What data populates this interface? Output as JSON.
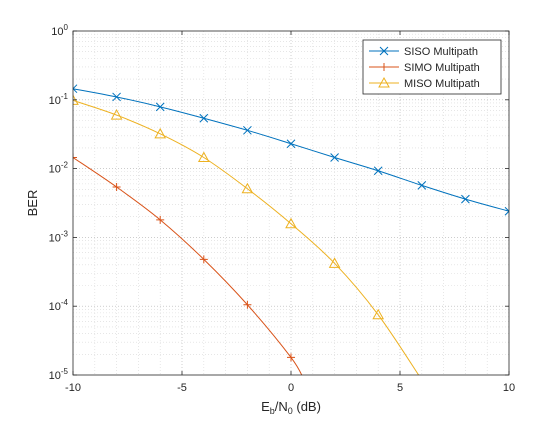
{
  "chart_data": {
    "type": "line",
    "title": "",
    "xlabel": {
      "pre": "E",
      "sub1": "b",
      "mid": "/N",
      "sub2": "0",
      "post": "  (dB)"
    },
    "ylabel": "BER",
    "xlim": [
      -10,
      10
    ],
    "ylim": [
      1e-05,
      1
    ],
    "yscale": "log",
    "grid": "major and minor, dotted",
    "legend_position": "top-right",
    "x_ticks": [
      -10,
      -5,
      0,
      5,
      10
    ],
    "x_tick_labels": [
      "-10",
      "-5",
      "0",
      "5",
      "10"
    ],
    "y_ticks": [
      {
        "value": 1,
        "base": "10",
        "exp": "0"
      },
      {
        "value": 0.1,
        "base": "10",
        "exp": "-1"
      },
      {
        "value": 0.01,
        "base": "10",
        "exp": "-2"
      },
      {
        "value": 0.001,
        "base": "10",
        "exp": "-3"
      },
      {
        "value": 0.0001,
        "base": "10",
        "exp": "-4"
      },
      {
        "value": 1e-05,
        "base": "10",
        "exp": "-5"
      }
    ],
    "series": [
      {
        "name": "SISO Multipath",
        "color": "#0072BD",
        "marker": "x",
        "x": [
          -10,
          -8,
          -6,
          -4,
          -2,
          0,
          2,
          4,
          6,
          8,
          10
        ],
        "y": [
          0.145,
          0.11,
          0.079,
          0.054,
          0.036,
          0.023,
          0.0145,
          0.0093,
          0.0057,
          0.0036,
          0.0024
        ]
      },
      {
        "name": "SIMO Multipath",
        "color": "#D95319",
        "marker": "+",
        "x": [
          -10,
          -8,
          -6,
          -4,
          -2,
          0,
          0.6
        ],
        "y": [
          0.0145,
          0.0054,
          0.0018,
          0.00048,
          0.000105,
          1.8e-05,
          8.5e-06
        ],
        "marker_count": 6
      },
      {
        "name": "MISO Multipath",
        "color": "#EDB120",
        "marker": "triangle",
        "x": [
          -10,
          -8,
          -6,
          -4,
          -2,
          0,
          2,
          4,
          6
        ],
        "y": [
          0.098,
          0.06,
          0.032,
          0.0145,
          0.0051,
          0.00158,
          0.00042,
          7.5e-05,
          8.5e-06
        ],
        "marker_count": 8
      }
    ]
  }
}
